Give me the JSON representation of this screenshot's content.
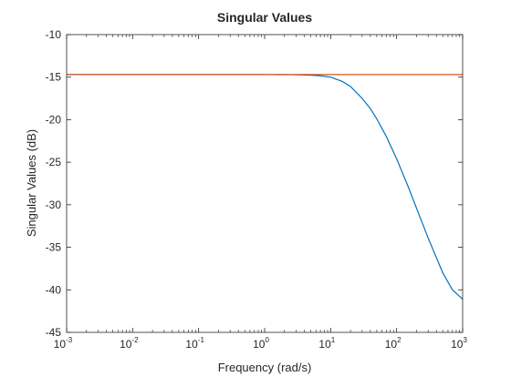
{
  "chart_data": {
    "type": "line",
    "title": "Singular Values",
    "xlabel": "Frequency (rad/s)",
    "ylabel": "Singular Values (dB)",
    "x_scale": "log",
    "xlim": [
      0.001,
      1000
    ],
    "ylim": [
      -45,
      -10
    ],
    "yticks": [
      -45,
      -40,
      -35,
      -30,
      -25,
      -20,
      -15,
      -10
    ],
    "ytick_labels": [
      "-45",
      "-40",
      "-35",
      "-30",
      "-25",
      "-20",
      "-15",
      "-10"
    ],
    "xticks": [
      {
        "value": 0.001,
        "base": "10",
        "exp": "-3"
      },
      {
        "value": 0.01,
        "base": "10",
        "exp": "-2"
      },
      {
        "value": 0.1,
        "base": "10",
        "exp": "-1"
      },
      {
        "value": 1,
        "base": "10",
        "exp": "0"
      },
      {
        "value": 10,
        "base": "10",
        "exp": "1"
      },
      {
        "value": 100,
        "base": "10",
        "exp": "2"
      },
      {
        "value": 1000,
        "base": "10",
        "exp": "3"
      }
    ],
    "grid": false,
    "series": [
      {
        "color": "#0072BD",
        "x": [
          0.001,
          0.01,
          0.1,
          1,
          2,
          3,
          5,
          7,
          10,
          15,
          20,
          30,
          40,
          50,
          70,
          100,
          150,
          200,
          300,
          500,
          700,
          1000
        ],
        "y": [
          -14.7,
          -14.7,
          -14.7,
          -14.7,
          -14.71,
          -14.72,
          -14.77,
          -14.84,
          -15.0,
          -15.5,
          -16.1,
          -17.5,
          -18.7,
          -19.9,
          -22.0,
          -24.6,
          -27.9,
          -30.4,
          -33.9,
          -38.0,
          -40.0,
          -41.1
        ]
      },
      {
        "color": "#D95319",
        "x": [
          0.001,
          1000
        ],
        "y": [
          -14.7,
          -14.7
        ]
      }
    ]
  }
}
